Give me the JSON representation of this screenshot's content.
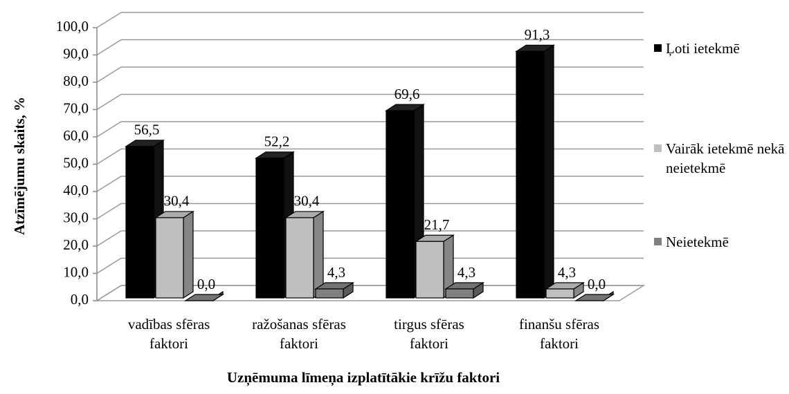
{
  "chart_data": {
    "type": "bar3d",
    "x_label": "Uzņēmuma līmeņa izplatītākie krīžu faktori",
    "y_label": "Atzīmējumu skaits, %",
    "categories": [
      "vadības sfēras faktori",
      "ražošanas sfēras faktori",
      "tirgus sfēras faktori",
      "finanšu sfēras faktori"
    ],
    "series": [
      {
        "name": "Ļoti ietekmē",
        "color": "#000000",
        "values": [
          56.5,
          52.2,
          69.6,
          91.3
        ],
        "value_labels": [
          "56,5",
          "52,2",
          "69,6",
          "91,3"
        ]
      },
      {
        "name": "Vairāk ietekmē nekā neietekmē",
        "color": "#bfbfbf",
        "values": [
          30.4,
          30.4,
          21.7,
          4.3
        ],
        "value_labels": [
          "30,4",
          "30,4",
          "21,7",
          "4,3"
        ]
      },
      {
        "name": "Neietekmē",
        "color": "#808080",
        "values": [
          0,
          4.3,
          4.3,
          0
        ],
        "value_labels": [
          "0,0",
          "4,3",
          "4,3",
          "0,0"
        ]
      }
    ],
    "ylim": [
      0,
      100
    ],
    "yticks": [
      {
        "value": 0,
        "label": "0,0"
      },
      {
        "value": 10,
        "label": "10,0"
      },
      {
        "value": 20,
        "label": "20,0"
      },
      {
        "value": 30,
        "label": "30,0"
      },
      {
        "value": 40,
        "label": "40,0"
      },
      {
        "value": 50,
        "label": "50,0"
      },
      {
        "value": 60,
        "label": "60,0"
      },
      {
        "value": 70,
        "label": "70,0"
      },
      {
        "value": 80,
        "label": "80,0"
      },
      {
        "value": 90,
        "label": "90,0"
      },
      {
        "value": 100,
        "label": "100,0"
      }
    ],
    "grid": true,
    "legend": "right"
  }
}
